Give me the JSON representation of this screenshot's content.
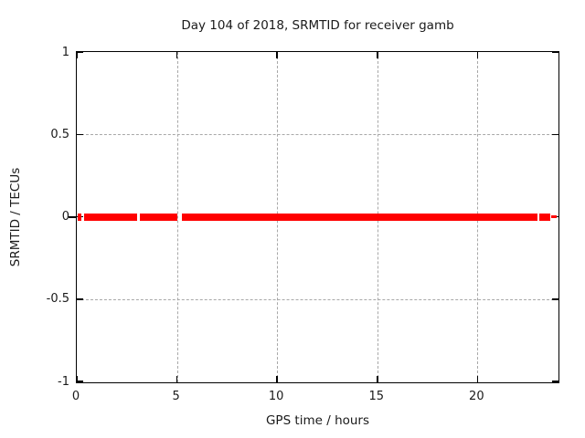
{
  "title": "Day 104 of 2018, SRMTID for receiver gamb",
  "chart_data": {
    "type": "scatter",
    "title": "Day 104 of 2018, SRMTID for receiver gamb",
    "xlabel": "GPS time / hours",
    "ylabel": "SRMTID / TECUs",
    "xlim": [
      0,
      24
    ],
    "ylim": [
      -1,
      1
    ],
    "x_ticks": [
      0,
      5,
      10,
      15,
      20
    ],
    "x_tick_labels": [
      "0",
      "5",
      "10",
      "15",
      "20"
    ],
    "y_ticks": [
      1,
      0.5,
      0,
      -0.5,
      -1
    ],
    "y_tick_labels": [
      "1",
      "0.5",
      "0",
      "-0.5",
      "-1"
    ],
    "grid": true,
    "legend_position": "none",
    "series_color": "#ff0000",
    "grid_color": "#a8a8a8",
    "series": [
      {
        "name": "SRMTID",
        "constant_value": 0,
        "segments": [
          {
            "x_start": 0.05,
            "x_end": 0.23,
            "y": 0,
            "density": "dense"
          },
          {
            "x_start": 0.36,
            "x_end": 3.0,
            "y": 0,
            "density": "dense"
          },
          {
            "x_start": 3.14,
            "x_end": 5.01,
            "y": 0,
            "density": "dense"
          },
          {
            "x_start": 5.24,
            "x_end": 23.0,
            "y": 0,
            "density": "dense"
          },
          {
            "x_start": 23.11,
            "x_end": 23.62,
            "y": 0,
            "density": "dense"
          },
          {
            "x_start": 23.68,
            "x_end": 23.97,
            "y": 0,
            "density": "sparse"
          }
        ]
      }
    ]
  }
}
